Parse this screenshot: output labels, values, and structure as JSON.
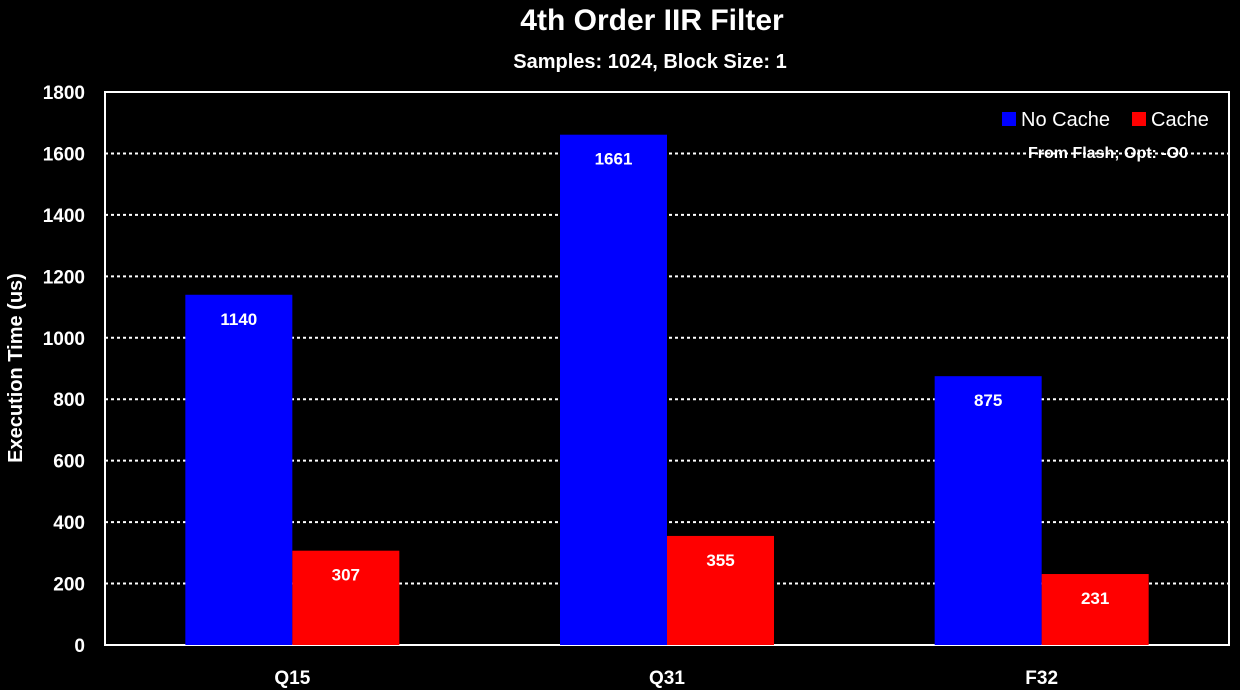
{
  "chart_data": {
    "type": "bar",
    "title": "4th Order IIR Filter",
    "subtitle": "Samples: 1024, Block Size: 1",
    "xlabel": "",
    "ylabel": "Execution Time (us)",
    "categories": [
      "Q15",
      "Q31",
      "F32"
    ],
    "series": [
      {
        "name": "No Cache",
        "color": "#0000ff",
        "values": [
          1140,
          1661,
          875
        ]
      },
      {
        "name": "Cache",
        "color": "#ff0000",
        "values": [
          307,
          355,
          231
        ]
      }
    ],
    "ylim": [
      0,
      1800
    ],
    "yticks": [
      0,
      200,
      400,
      600,
      800,
      1000,
      1200,
      1400,
      1600,
      1800
    ],
    "grid": true,
    "legend_position": "top-right",
    "annotation": "From Flash; Opt: -O0",
    "background": "#000000",
    "grid_color": "#ffffff"
  }
}
